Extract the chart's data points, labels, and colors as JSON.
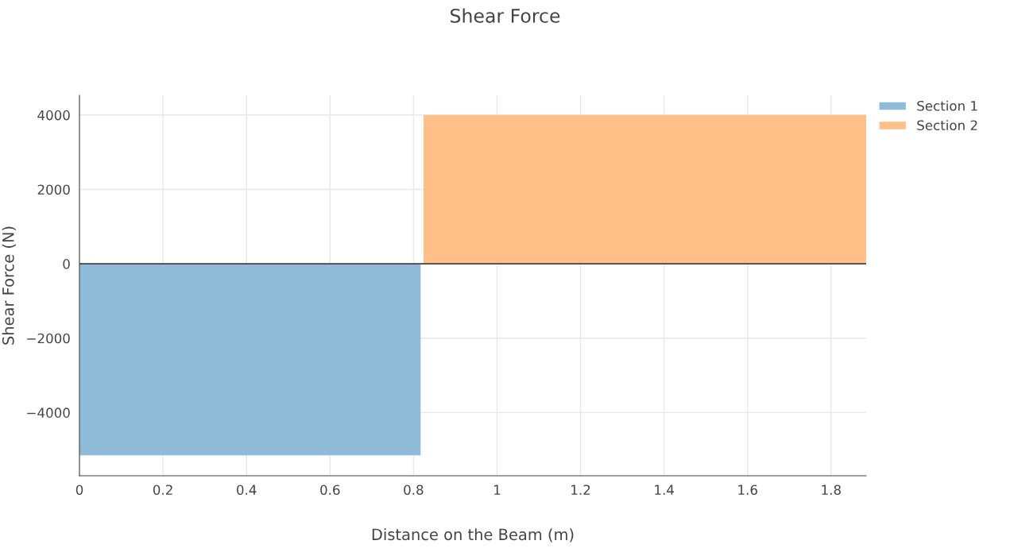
{
  "chart_data": {
    "type": "area",
    "title": "Shear Force",
    "xlabel": "Distance on the Beam (m)",
    "ylabel": "Shear Force (N)",
    "series": [
      {
        "name": "Section 1",
        "color": "#8fbbd9",
        "x": [
          0,
          0.817
        ],
        "values": [
          -5150,
          -5150
        ]
      },
      {
        "name": "Section 2",
        "color": "#ffbf86",
        "x": [
          0.824,
          1.884
        ],
        "values": [
          4000,
          4000
        ]
      }
    ],
    "xlim": [
      0,
      1.884
    ],
    "xticks": [
      0,
      0.2,
      0.4,
      0.6,
      0.8,
      1,
      1.2,
      1.4,
      1.6,
      1.8
    ],
    "ylim": [
      -5700,
      4530
    ],
    "yticks": [
      {
        "value": -4000,
        "label": "−4000"
      },
      {
        "value": -2000,
        "label": "−2000"
      },
      0,
      2000,
      4000
    ],
    "ref_lines": [
      {
        "axis": "y",
        "value": 0,
        "color": "#444444"
      }
    ],
    "grid": true,
    "legend": "top right"
  }
}
